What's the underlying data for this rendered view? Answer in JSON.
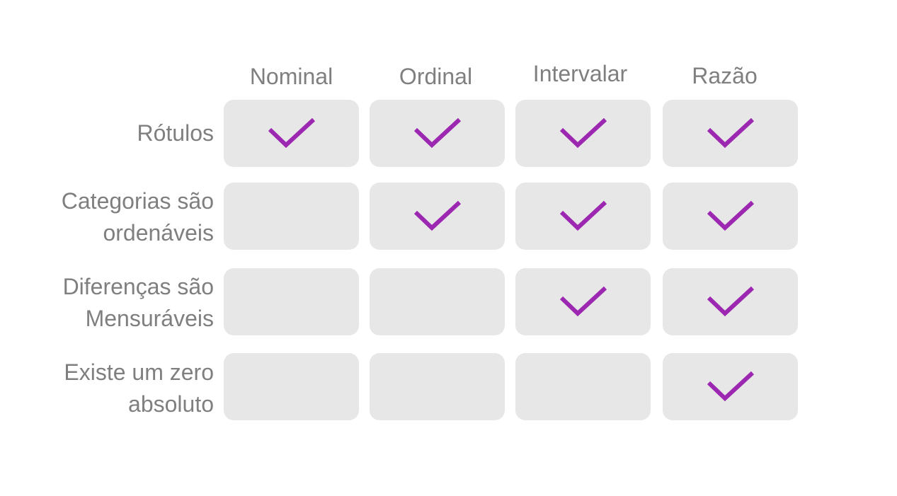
{
  "columns": [
    "Nominal",
    "Ordinal",
    "Intervalar",
    "Razão"
  ],
  "rows": [
    {
      "label_lines": [
        "Rótulos"
      ],
      "checks": [
        true,
        true,
        true,
        true
      ]
    },
    {
      "label_lines": [
        "Categorias são",
        "ordenáveis"
      ],
      "checks": [
        false,
        true,
        true,
        true
      ]
    },
    {
      "label_lines": [
        "Diferenças são",
        "Mensuráveis"
      ],
      "checks": [
        false,
        false,
        true,
        true
      ]
    },
    {
      "label_lines": [
        "Existe um zero",
        "absoluto"
      ],
      "checks": [
        false,
        false,
        false,
        true
      ]
    }
  ],
  "colors": {
    "text": "#7f7f7f",
    "cell_bg": "#e7e7e7",
    "check": "#9c27b0"
  },
  "icons": {
    "check": "checkmark-icon"
  }
}
